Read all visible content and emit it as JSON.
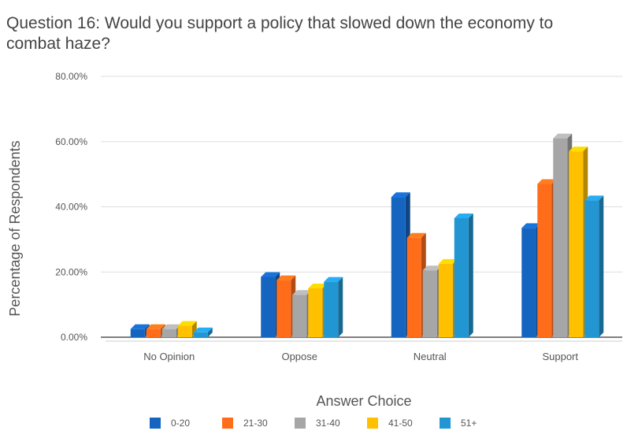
{
  "chart_data": {
    "type": "bar",
    "title_line1": "Question 16: Would you support a policy that slowed down the economy to",
    "title_line2": "combat haze?",
    "xlabel": "Answer Choice",
    "ylabel": "Percentage of Respondents",
    "ylim": [
      0,
      80
    ],
    "yticks": [
      0,
      20,
      40,
      60,
      80
    ],
    "ytick_labels": [
      "0.00%",
      "20.00%",
      "40.00%",
      "60.00%",
      "80.00%"
    ],
    "categories": [
      "No Opinion",
      "Oppose",
      "Neutral",
      "Support"
    ],
    "series": [
      {
        "name": "0-20",
        "color": "#1565C0",
        "values": [
          2.5,
          18.5,
          43,
          33.5
        ]
      },
      {
        "name": "21-30",
        "color": "#FF6D1A",
        "values": [
          2.5,
          17.5,
          30.5,
          47
        ]
      },
      {
        "name": "31-40",
        "color": "#A6A6A6",
        "values": [
          2.5,
          13,
          20.5,
          61
        ]
      },
      {
        "name": "41-50",
        "color": "#FFC000",
        "values": [
          3.5,
          15,
          22.5,
          57
        ]
      },
      {
        "name": "51+",
        "color": "#2196D3",
        "values": [
          1.5,
          17,
          36.5,
          42
        ]
      }
    ],
    "grid": true,
    "legend_position": "bottom",
    "style": "3d-bars"
  }
}
